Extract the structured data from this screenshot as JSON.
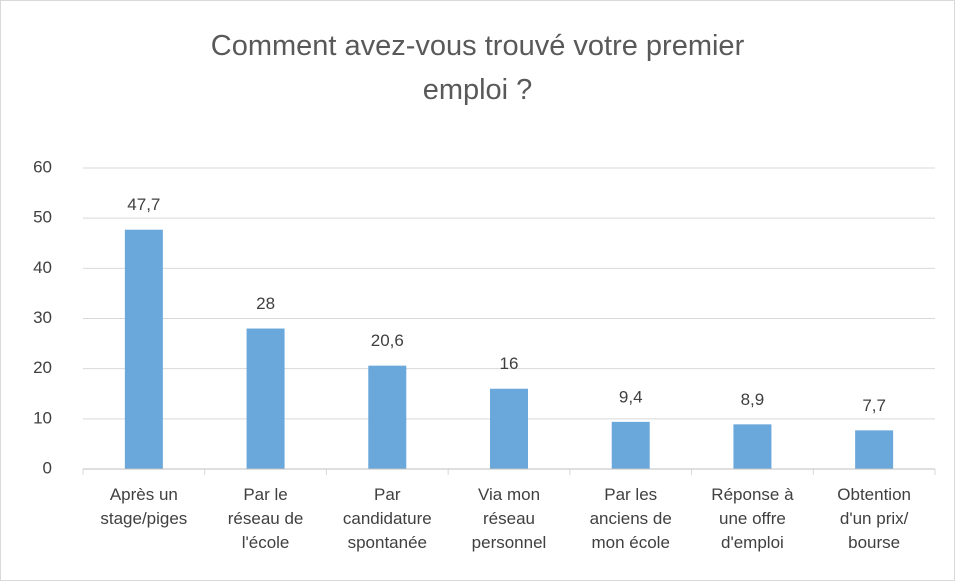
{
  "chart_data": {
    "type": "bar",
    "title": "Comment avez-vous trouvé votre premier emploi ?",
    "categories": [
      "Après un stage/piges",
      "Par le réseau de l'école",
      "Par candidature spontanée",
      "Via mon réseau personnel",
      "Par les anciens de mon école",
      "Réponse à une offre d'emploi",
      "Obtention d'un prix/ bourse"
    ],
    "values": [
      47.7,
      28,
      20.6,
      16,
      9.4,
      8.9,
      7.7
    ],
    "value_labels": [
      "47,7",
      "28",
      "20,6",
      "16",
      "9,4",
      "8,9",
      "7,7"
    ],
    "color": "#6aa8dc",
    "ylim": [
      0,
      60
    ],
    "yticks": [
      0,
      10,
      20,
      30,
      40,
      50,
      60
    ],
    "grid": true
  }
}
